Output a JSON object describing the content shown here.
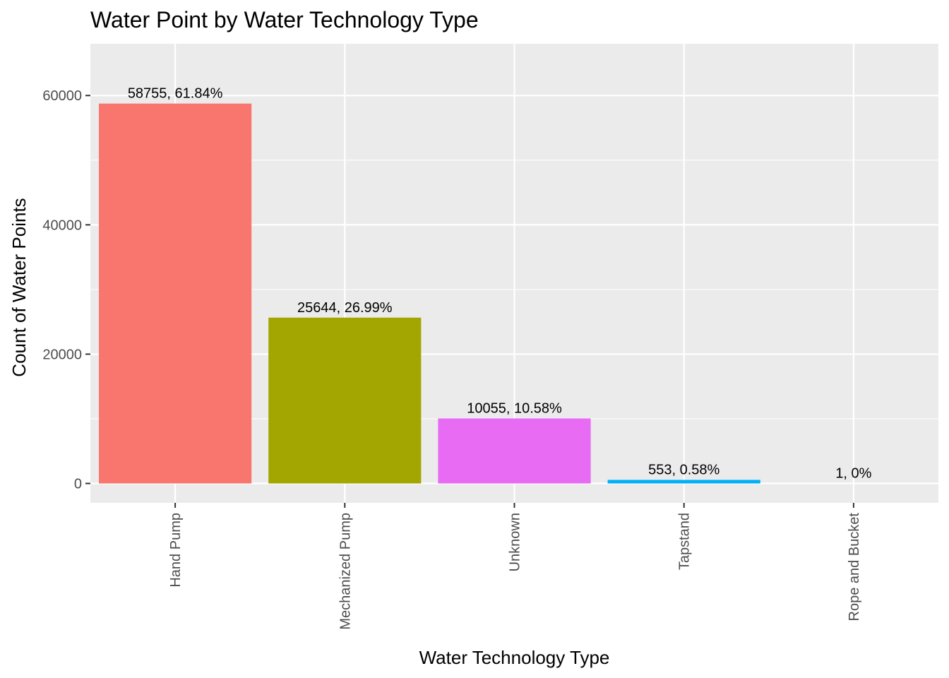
{
  "chart_data": {
    "type": "bar",
    "title": "Water Point by Water Technology Type",
    "xlabel": "Water Technology Type",
    "ylabel": "Count of Water Points",
    "categories": [
      "Hand Pump",
      "Mechanized Pump",
      "Unknown",
      "Tapstand",
      "Rope and Bucket"
    ],
    "values": [
      58755,
      25644,
      10055,
      553,
      1
    ],
    "labels": [
      "58755, 61.84%",
      "25644, 26.99%",
      "10055, 10.58%",
      "553, 0.58%",
      "1, 0%"
    ],
    "colors": [
      "#F8766D",
      "#A3A500",
      "#E76BF3",
      "#00B0F6",
      "#00BF7D"
    ],
    "ylim": [
      -3000,
      68000
    ],
    "yticks": [
      0,
      20000,
      40000,
      60000
    ],
    "grid": true,
    "legend": "none",
    "panel_background": "#EBEBEB"
  }
}
